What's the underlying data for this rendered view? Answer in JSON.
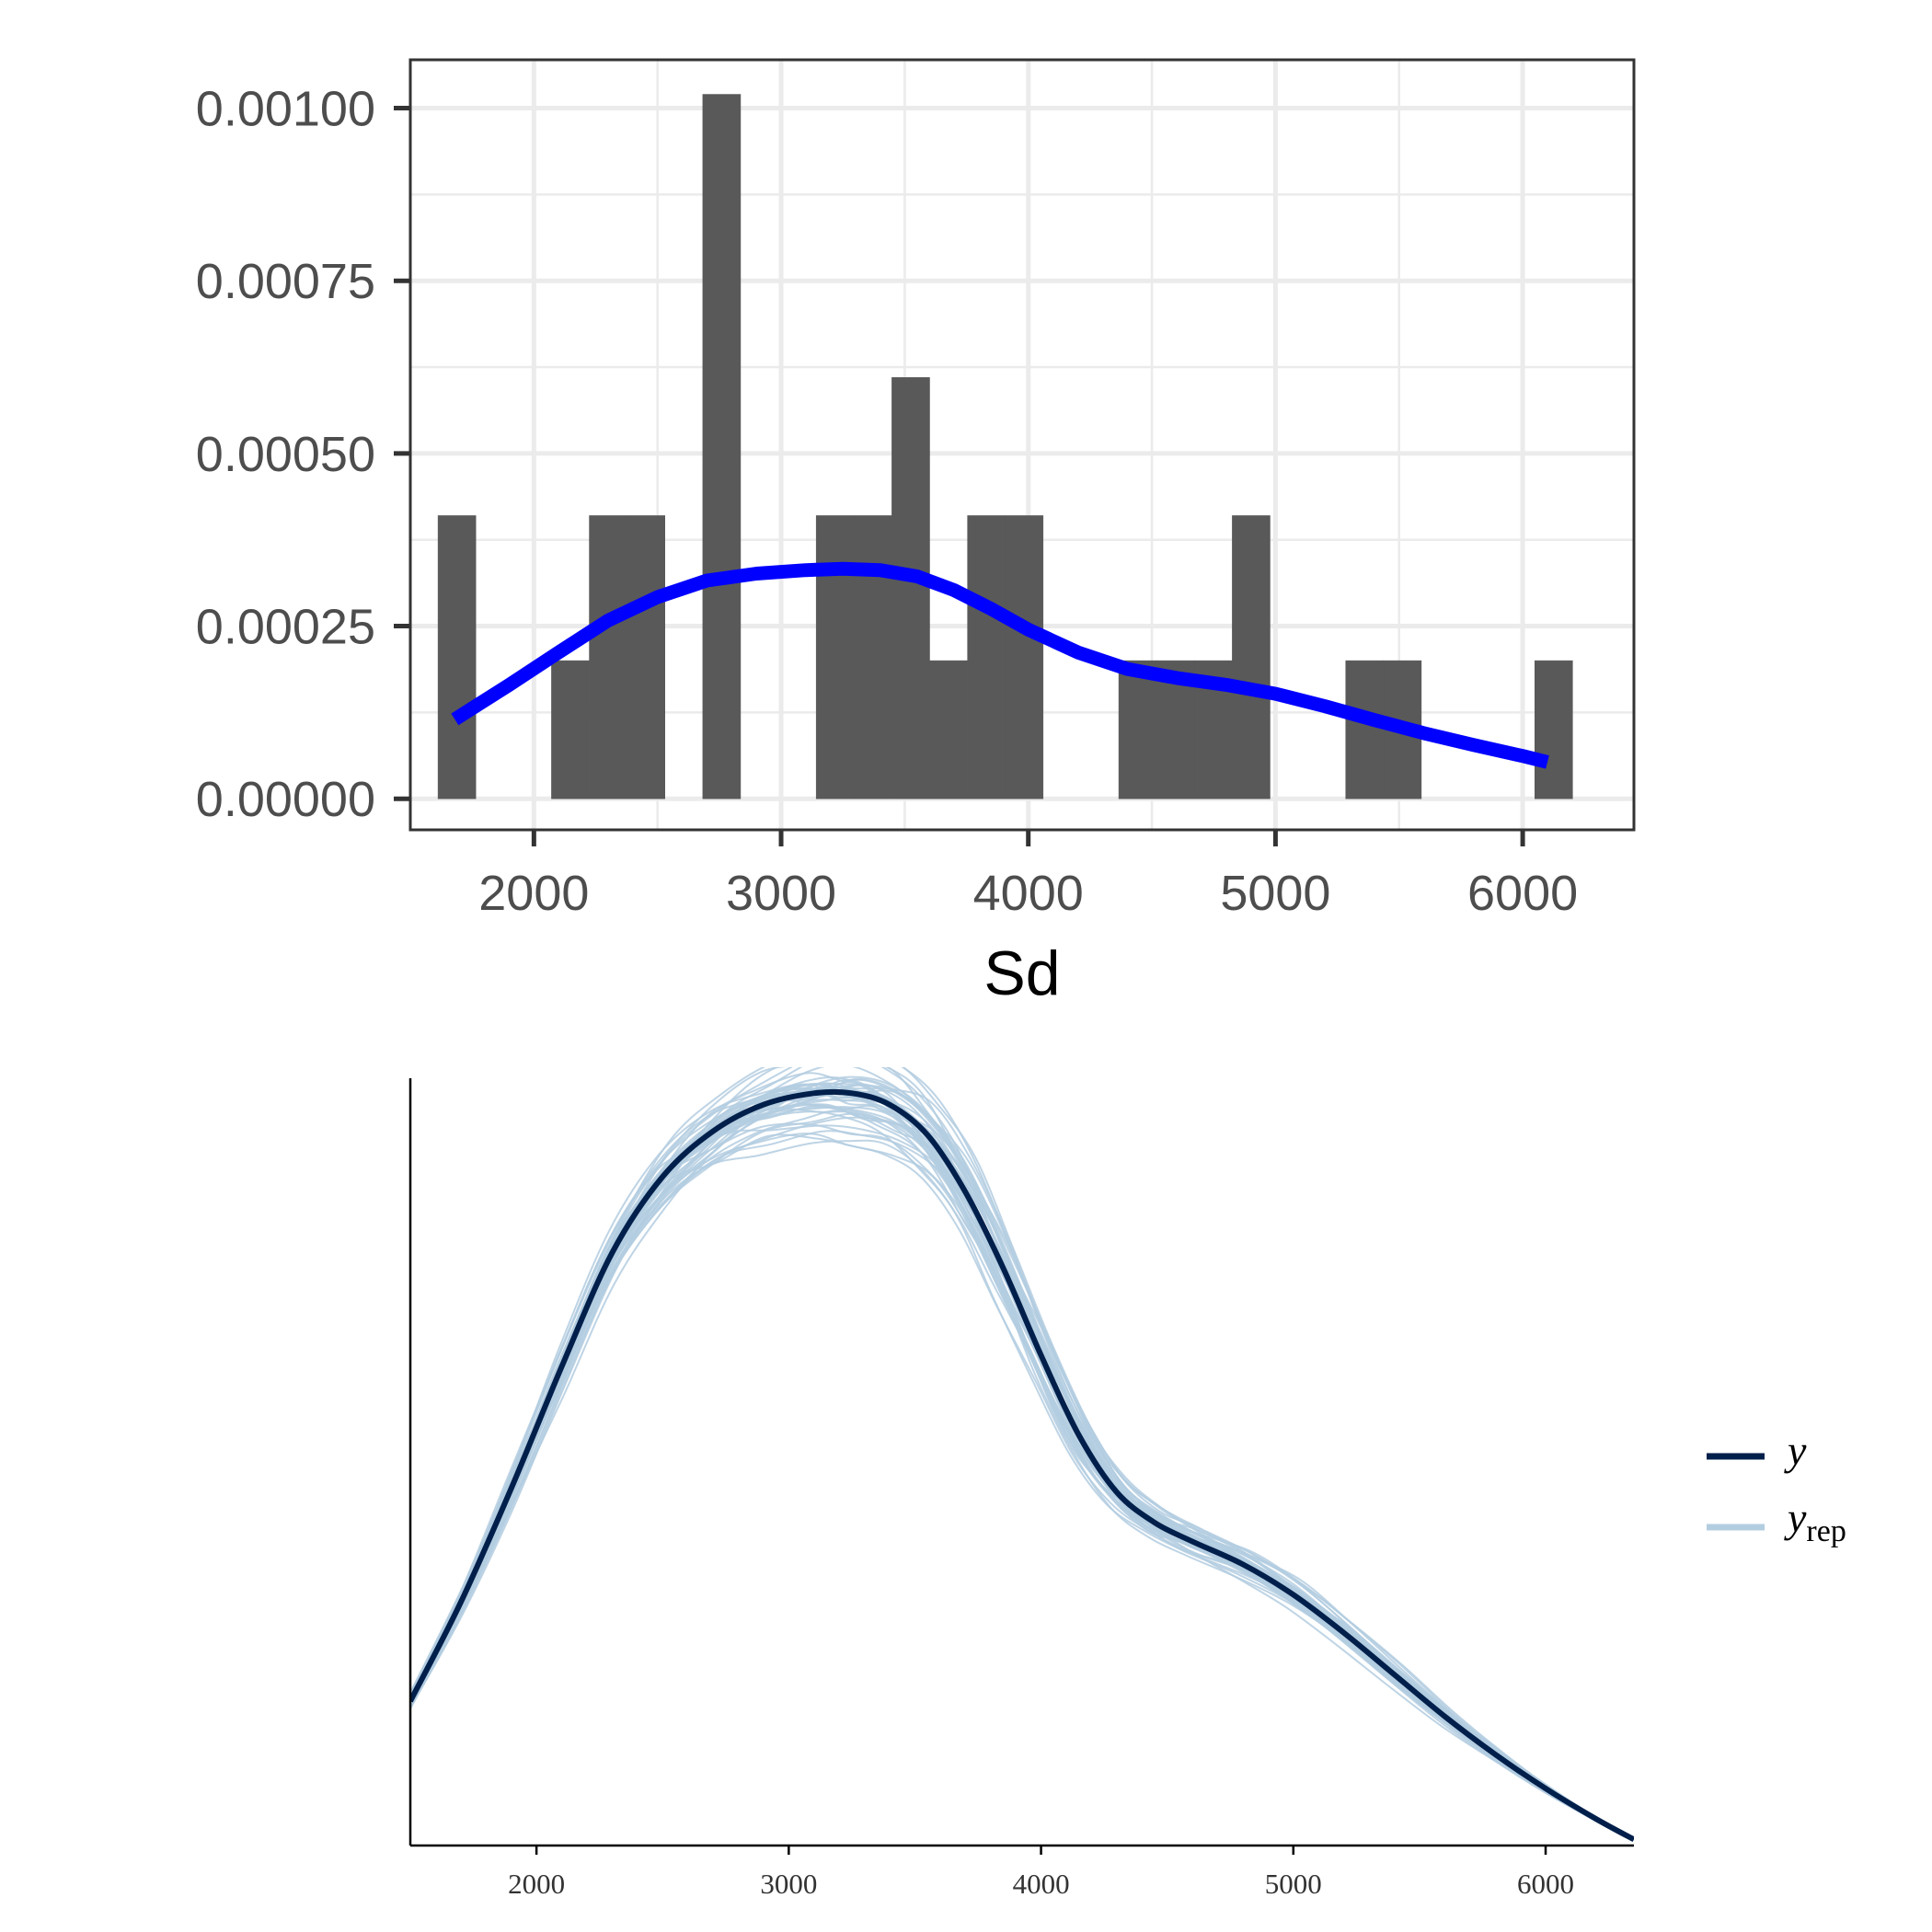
{
  "chart_data": [
    {
      "type": "histogram",
      "xlabel": "Sd",
      "ylabel": "",
      "xlim": [
        1500,
        6450
      ],
      "ylim": [
        -4.5e-05,
        0.00107
      ],
      "x_ticks": [
        2000,
        3000,
        4000,
        5000,
        6000
      ],
      "x_tick_labels": [
        "2000",
        "3000",
        "4000",
        "5000",
        "6000"
      ],
      "y_ticks": [
        0,
        0.00025,
        0.0005,
        0.00075,
        0.001
      ],
      "y_tick_labels": [
        "0.00000",
        "0.00025",
        "0.00050",
        "0.00075",
        "0.00100"
      ],
      "grid": true,
      "bin_width": 153,
      "bins": [
        {
          "x0": 1612,
          "x1": 1765,
          "y": 0.00041
        },
        {
          "x0": 2071,
          "x1": 2224,
          "y": 0.0002
        },
        {
          "x0": 2224,
          "x1": 2377,
          "y": 0.00041
        },
        {
          "x0": 2377,
          "x1": 2530,
          "y": 0.00041
        },
        {
          "x0": 2683,
          "x1": 2836,
          "y": 0.00102
        },
        {
          "x0": 3142,
          "x1": 3295,
          "y": 0.00041
        },
        {
          "x0": 3295,
          "x1": 3448,
          "y": 0.00041
        },
        {
          "x0": 3448,
          "x1": 3601,
          "y": 0.00061
        },
        {
          "x0": 3601,
          "x1": 3754,
          "y": 0.0002
        },
        {
          "x0": 3754,
          "x1": 3907,
          "y": 0.00041
        },
        {
          "x0": 3907,
          "x1": 4060,
          "y": 0.00041
        },
        {
          "x0": 4366,
          "x1": 4519,
          "y": 0.0002
        },
        {
          "x0": 4519,
          "x1": 4672,
          "y": 0.0002
        },
        {
          "x0": 4672,
          "x1": 4825,
          "y": 0.0002
        },
        {
          "x0": 4825,
          "x1": 4978,
          "y": 0.00041
        },
        {
          "x0": 5284,
          "x1": 5437,
          "y": 0.0002
        },
        {
          "x0": 5437,
          "x1": 5590,
          "y": 0.0002
        },
        {
          "x0": 6049,
          "x1": 6202,
          "y": 0.0002
        }
      ],
      "density_line": {
        "color": "#0000ff",
        "x": [
          1680,
          1900,
          2100,
          2300,
          2500,
          2700,
          2900,
          3100,
          3250,
          3400,
          3550,
          3700,
          3850,
          4000,
          4200,
          4400,
          4600,
          4800,
          5000,
          5200,
          5400,
          5600,
          5800,
          6000,
          6100
        ],
        "y": [
          0.000115,
          0.000165,
          0.000212,
          0.000258,
          0.000292,
          0.000316,
          0.000326,
          0.000331,
          0.000333,
          0.000331,
          0.000322,
          0.000302,
          0.000275,
          0.000245,
          0.000212,
          0.000188,
          0.000175,
          0.000165,
          0.000152,
          0.000134,
          0.000114,
          9.5e-05,
          7.8e-05,
          6.2e-05,
          5.3e-05
        ]
      },
      "bar_color": "#595959"
    },
    {
      "type": "line",
      "xlim": [
        1500,
        6350
      ],
      "ylim": [
        0,
        1.0
      ],
      "x_ticks": [
        2000,
        3000,
        4000,
        5000,
        6000
      ],
      "x_tick_labels": [
        "2000",
        "3000",
        "4000",
        "5000",
        "6000"
      ],
      "legend_position": "right",
      "legend": [
        {
          "label": "y",
          "sub": "",
          "color": "#011f4b"
        },
        {
          "label": "y",
          "sub": "rep",
          "color": "#b3cde0"
        }
      ],
      "series": [
        {
          "name": "y",
          "color": "#011f4b",
          "x": [
            1500,
            1700,
            1900,
            2100,
            2300,
            2500,
            2700,
            2900,
            3100,
            3250,
            3400,
            3550,
            3700,
            3850,
            4000,
            4150,
            4300,
            4450,
            4600,
            4800,
            5000,
            5200,
            5400,
            5600,
            5800,
            6000,
            6200,
            6350
          ],
          "y": [
            0.19,
            0.32,
            0.47,
            0.63,
            0.78,
            0.88,
            0.94,
            0.975,
            0.99,
            0.99,
            0.975,
            0.935,
            0.86,
            0.76,
            0.645,
            0.54,
            0.465,
            0.425,
            0.4,
            0.37,
            0.33,
            0.28,
            0.225,
            0.17,
            0.12,
            0.075,
            0.035,
            0.008
          ]
        }
      ],
      "replicates": {
        "name": "yrep",
        "color": "#b3cde0",
        "count": 50
      }
    }
  ]
}
